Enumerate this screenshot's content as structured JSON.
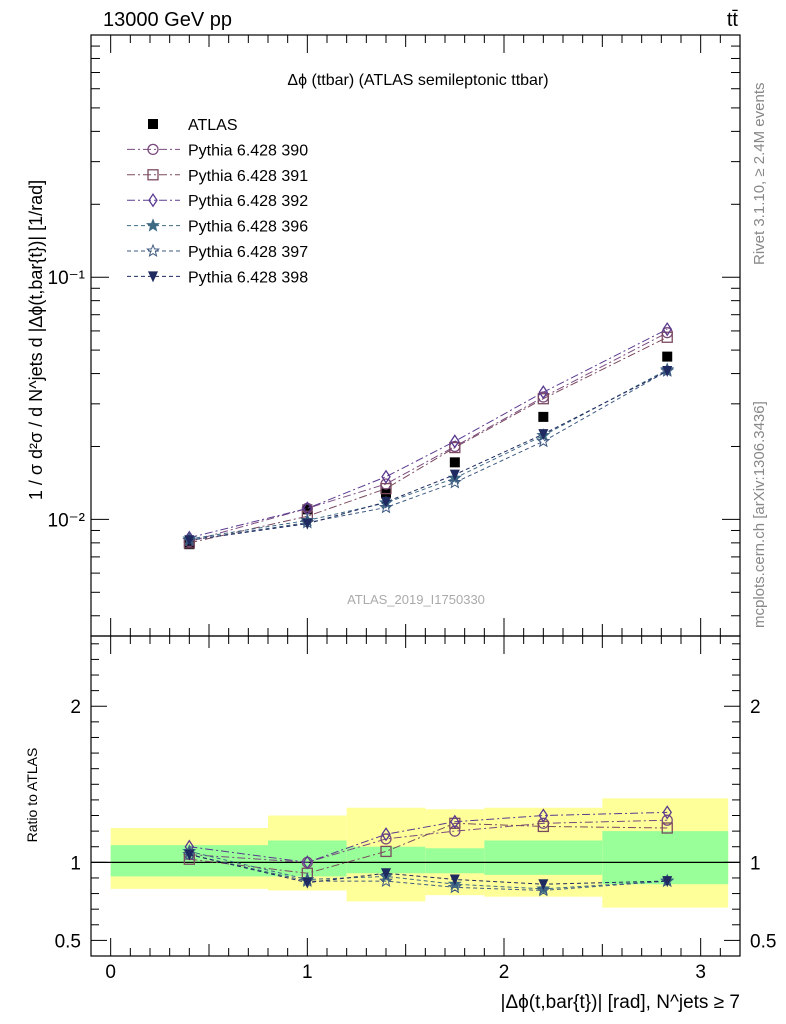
{
  "header": {
    "energy_label": "13000 GeV pp",
    "process_label": "tt̄"
  },
  "side_labels": {
    "rivet": "Rivet 3.1.10, ≥ 2.4M events",
    "mcplots": "mcplots.cern.ch [arXiv:1306.3436]"
  },
  "chart_data": [
    {
      "type": "line",
      "panel": "main",
      "title": "Δϕ (ttbar) (ATLAS semileptonic ttbar)",
      "ylabel": "1 / σ d²σ / d N^jets d |Δϕ(t,bar{t})| [1/rad]",
      "yscale": "log",
      "ylim": [
        0.0033,
        1.0
      ],
      "xlim": [
        -0.1,
        3.2
      ],
      "ytick_labels": [
        "10⁻²",
        "10⁻¹"
      ],
      "watermark": "ATLAS_2019_I1750330",
      "legend_position": "top-left",
      "x": [
        0.4,
        1.0,
        1.4,
        1.75,
        2.2,
        2.83
      ],
      "series": [
        {
          "name": "ATLAS",
          "values": [
            0.0079,
            0.011,
            0.0128,
            0.0172,
            0.0265,
            0.047
          ],
          "color": "#000000",
          "marker": "filled-square",
          "dash": ""
        },
        {
          "name": "Pythia 6.428 390",
          "values": [
            0.0081,
            0.0111,
            0.014,
            0.02,
            0.032,
            0.059
          ],
          "color": "#7a4a7e",
          "marker": "open-circle",
          "dash": "8,3,2,3"
        },
        {
          "name": "Pythia 6.428 391",
          "values": [
            0.008,
            0.0103,
            0.0134,
            0.0198,
            0.0315,
            0.0565
          ],
          "color": "#7a4a5e",
          "marker": "open-square",
          "dash": "8,3,2,3"
        },
        {
          "name": "Pythia 6.428 392",
          "values": [
            0.0084,
            0.0111,
            0.015,
            0.021,
            0.0335,
            0.061
          ],
          "color": "#5a3a90",
          "marker": "open-diamond",
          "dash": "8,3,2,3"
        },
        {
          "name": "Pythia 6.428 396",
          "values": [
            0.0083,
            0.0099,
            0.0117,
            0.0148,
            0.0222,
            0.0415
          ],
          "color": "#3e6a84",
          "marker": "filled-star",
          "dash": "4,3"
        },
        {
          "name": "Pythia 6.428 397",
          "values": [
            0.0082,
            0.0097,
            0.0112,
            0.0142,
            0.021,
            0.041
          ],
          "color": "#3e5a80",
          "marker": "open-star",
          "dash": "4,3"
        },
        {
          "name": "Pythia 6.428 398",
          "values": [
            0.0082,
            0.0096,
            0.0118,
            0.0153,
            0.0225,
            0.041
          ],
          "color": "#1e2a60",
          "marker": "filled-triangle-down",
          "dash": "4,3"
        }
      ]
    },
    {
      "type": "line",
      "panel": "ratio",
      "ylabel": "Ratio to ATLAS",
      "xlabel": "|Δϕ(t,bar{t})| [rad], N^jets ≥ 7",
      "ylim": [
        0.4,
        2.45
      ],
      "xlim": [
        -0.1,
        3.2
      ],
      "ytick_labels": [
        "0.5",
        "1",
        "2"
      ],
      "xtick_labels": [
        "0",
        "1",
        "2",
        "3"
      ],
      "x": [
        0.4,
        1.0,
        1.4,
        1.75,
        2.2,
        2.83
      ],
      "band_edges": [
        0,
        0.8,
        1.2,
        1.6,
        1.9,
        2.5,
        3.14
      ],
      "band_stat": [
        [
          0.91,
          1.11
        ],
        [
          0.91,
          1.14
        ],
        [
          0.93,
          1.1
        ],
        [
          0.93,
          1.09
        ],
        [
          0.92,
          1.14
        ],
        [
          0.86,
          1.2
        ]
      ],
      "band_total": [
        [
          0.83,
          1.22
        ],
        [
          0.82,
          1.3
        ],
        [
          0.75,
          1.35
        ],
        [
          0.79,
          1.34
        ],
        [
          0.78,
          1.35
        ],
        [
          0.71,
          1.41
        ]
      ],
      "band_colors": {
        "total": "#ffff99",
        "stat": "#99ff99"
      },
      "series": [
        {
          "name": "Pythia 6.428 390",
          "values": [
            1.05,
            1.0,
            1.15,
            1.2,
            1.25,
            1.27
          ]
        },
        {
          "name": "Pythia 6.428 391",
          "values": [
            1.02,
            0.93,
            1.07,
            1.25,
            1.23,
            1.22
          ]
        },
        {
          "name": "Pythia 6.428 392",
          "values": [
            1.1,
            1.0,
            1.18,
            1.26,
            1.3,
            1.32
          ]
        },
        {
          "name": "Pythia 6.428 396",
          "values": [
            1.07,
            0.89,
            0.91,
            0.86,
            0.83,
            0.88
          ]
        },
        {
          "name": "Pythia 6.428 397",
          "values": [
            1.05,
            0.88,
            0.88,
            0.84,
            0.82,
            0.88
          ]
        },
        {
          "name": "Pythia 6.428 398",
          "values": [
            1.05,
            0.87,
            0.93,
            0.89,
            0.86,
            0.88
          ]
        }
      ]
    }
  ]
}
